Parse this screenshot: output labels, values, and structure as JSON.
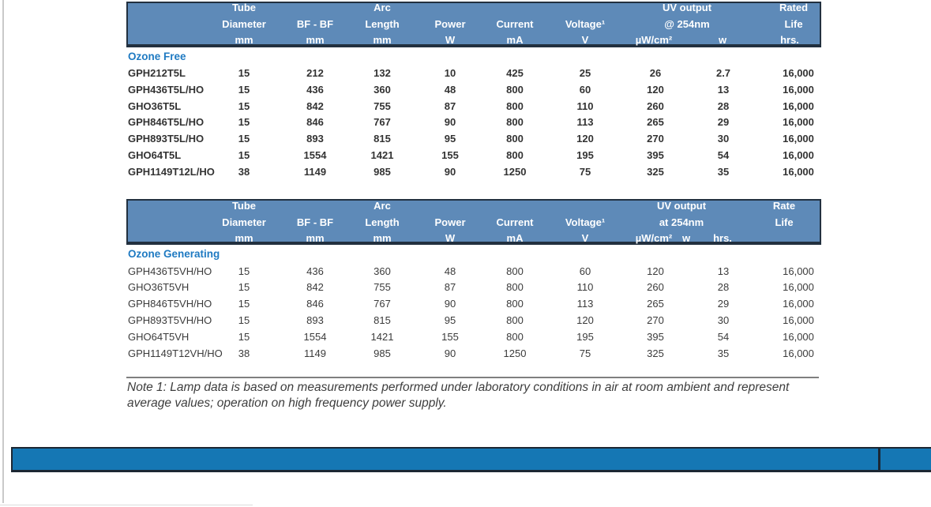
{
  "colors": {
    "table_header_fill": "#5e8ab8",
    "table_header_border": "#22303f",
    "section_label_blue": "#1f7ac2",
    "footer_bar_blue": "#1577b4",
    "body_text": "#3b3b3b"
  },
  "tables": [
    {
      "section_label": "Ozone Free",
      "header": {
        "groups": [
          "Tube",
          "Arc",
          "UV output",
          "Rated"
        ],
        "labels": [
          "Diameter",
          "BF - BF",
          "Length",
          "Power",
          "Current",
          "Voltage¹",
          "@ 254nm",
          "Life"
        ],
        "units": [
          "mm",
          "mm",
          "mm",
          "W",
          "mA",
          "V",
          "µW/cm²",
          "w",
          "hrs."
        ]
      },
      "rows": [
        {
          "name": "GPH212T5L",
          "values": [
            "15",
            "212",
            "132",
            "10",
            "425",
            "25",
            "26",
            "2.7",
            "16,000"
          ]
        },
        {
          "name": "GPH436T5L/HO",
          "values": [
            "15",
            "436",
            "360",
            "48",
            "800",
            "60",
            "120",
            "13",
            "16,000"
          ]
        },
        {
          "name": "GHO36T5L",
          "values": [
            "15",
            "842",
            "755",
            "87",
            "800",
            "110",
            "260",
            "28",
            "16,000"
          ]
        },
        {
          "name": "GPH846T5L/HO",
          "values": [
            "15",
            "846",
            "767",
            "90",
            "800",
            "113",
            "265",
            "29",
            "16,000"
          ]
        },
        {
          "name": "GPH893T5L/HO",
          "values": [
            "15",
            "893",
            "815",
            "95",
            "800",
            "120",
            "270",
            "30",
            "16,000"
          ]
        },
        {
          "name": "GHO64T5L",
          "values": [
            "15",
            "1554",
            "1421",
            "155",
            "800",
            "195",
            "395",
            "54",
            "16,000"
          ]
        },
        {
          "name": "GPH1149T12L/HO",
          "values": [
            "38",
            "1149",
            "985",
            "90",
            "1250",
            "75",
            "325",
            "35",
            "16,000"
          ]
        }
      ]
    },
    {
      "section_label": "Ozone Generating",
      "header": {
        "groups": [
          "Tube",
          "Arc",
          "UV output",
          "Rate"
        ],
        "labels": [
          "Diameter",
          "BF - BF",
          "Length",
          "Power",
          "Current",
          "Voltage¹",
          "at 254nm",
          "Life"
        ],
        "units": [
          "mm",
          "mm",
          "mm",
          "W",
          "mA",
          "V",
          "µW/cm²",
          "w",
          "hrs."
        ]
      },
      "rows": [
        {
          "name": "GPH436T5VH/HO",
          "values": [
            "15",
            "436",
            "360",
            "48",
            "800",
            "60",
            "120",
            "13",
            "16,000"
          ]
        },
        {
          "name": "GHO36T5VH",
          "values": [
            "15",
            "842",
            "755",
            "87",
            "800",
            "110",
            "260",
            "28",
            "16,000"
          ]
        },
        {
          "name": "GPH846T5VH/HO",
          "values": [
            "15",
            "846",
            "767",
            "90",
            "800",
            "113",
            "265",
            "29",
            "16,000"
          ]
        },
        {
          "name": "GPH893T5VH/HO",
          "values": [
            "15",
            "893",
            "815",
            "95",
            "800",
            "120",
            "270",
            "30",
            "16,000"
          ]
        },
        {
          "name": "GHO64T5VH",
          "values": [
            "15",
            "1554",
            "1421",
            "155",
            "800",
            "195",
            "395",
            "54",
            "16,000"
          ]
        },
        {
          "name": "GPH1149T12VH/HO",
          "values": [
            "38",
            "1149",
            "985",
            "90",
            "1250",
            "75",
            "325",
            "35",
            "16,000"
          ]
        }
      ]
    }
  ],
  "note": {
    "line1": "Note 1: Lamp data is based on measurements performed under laboratory conditions in air at room ambient and represent",
    "line2": "average values; operation on high frequency power supply."
  }
}
